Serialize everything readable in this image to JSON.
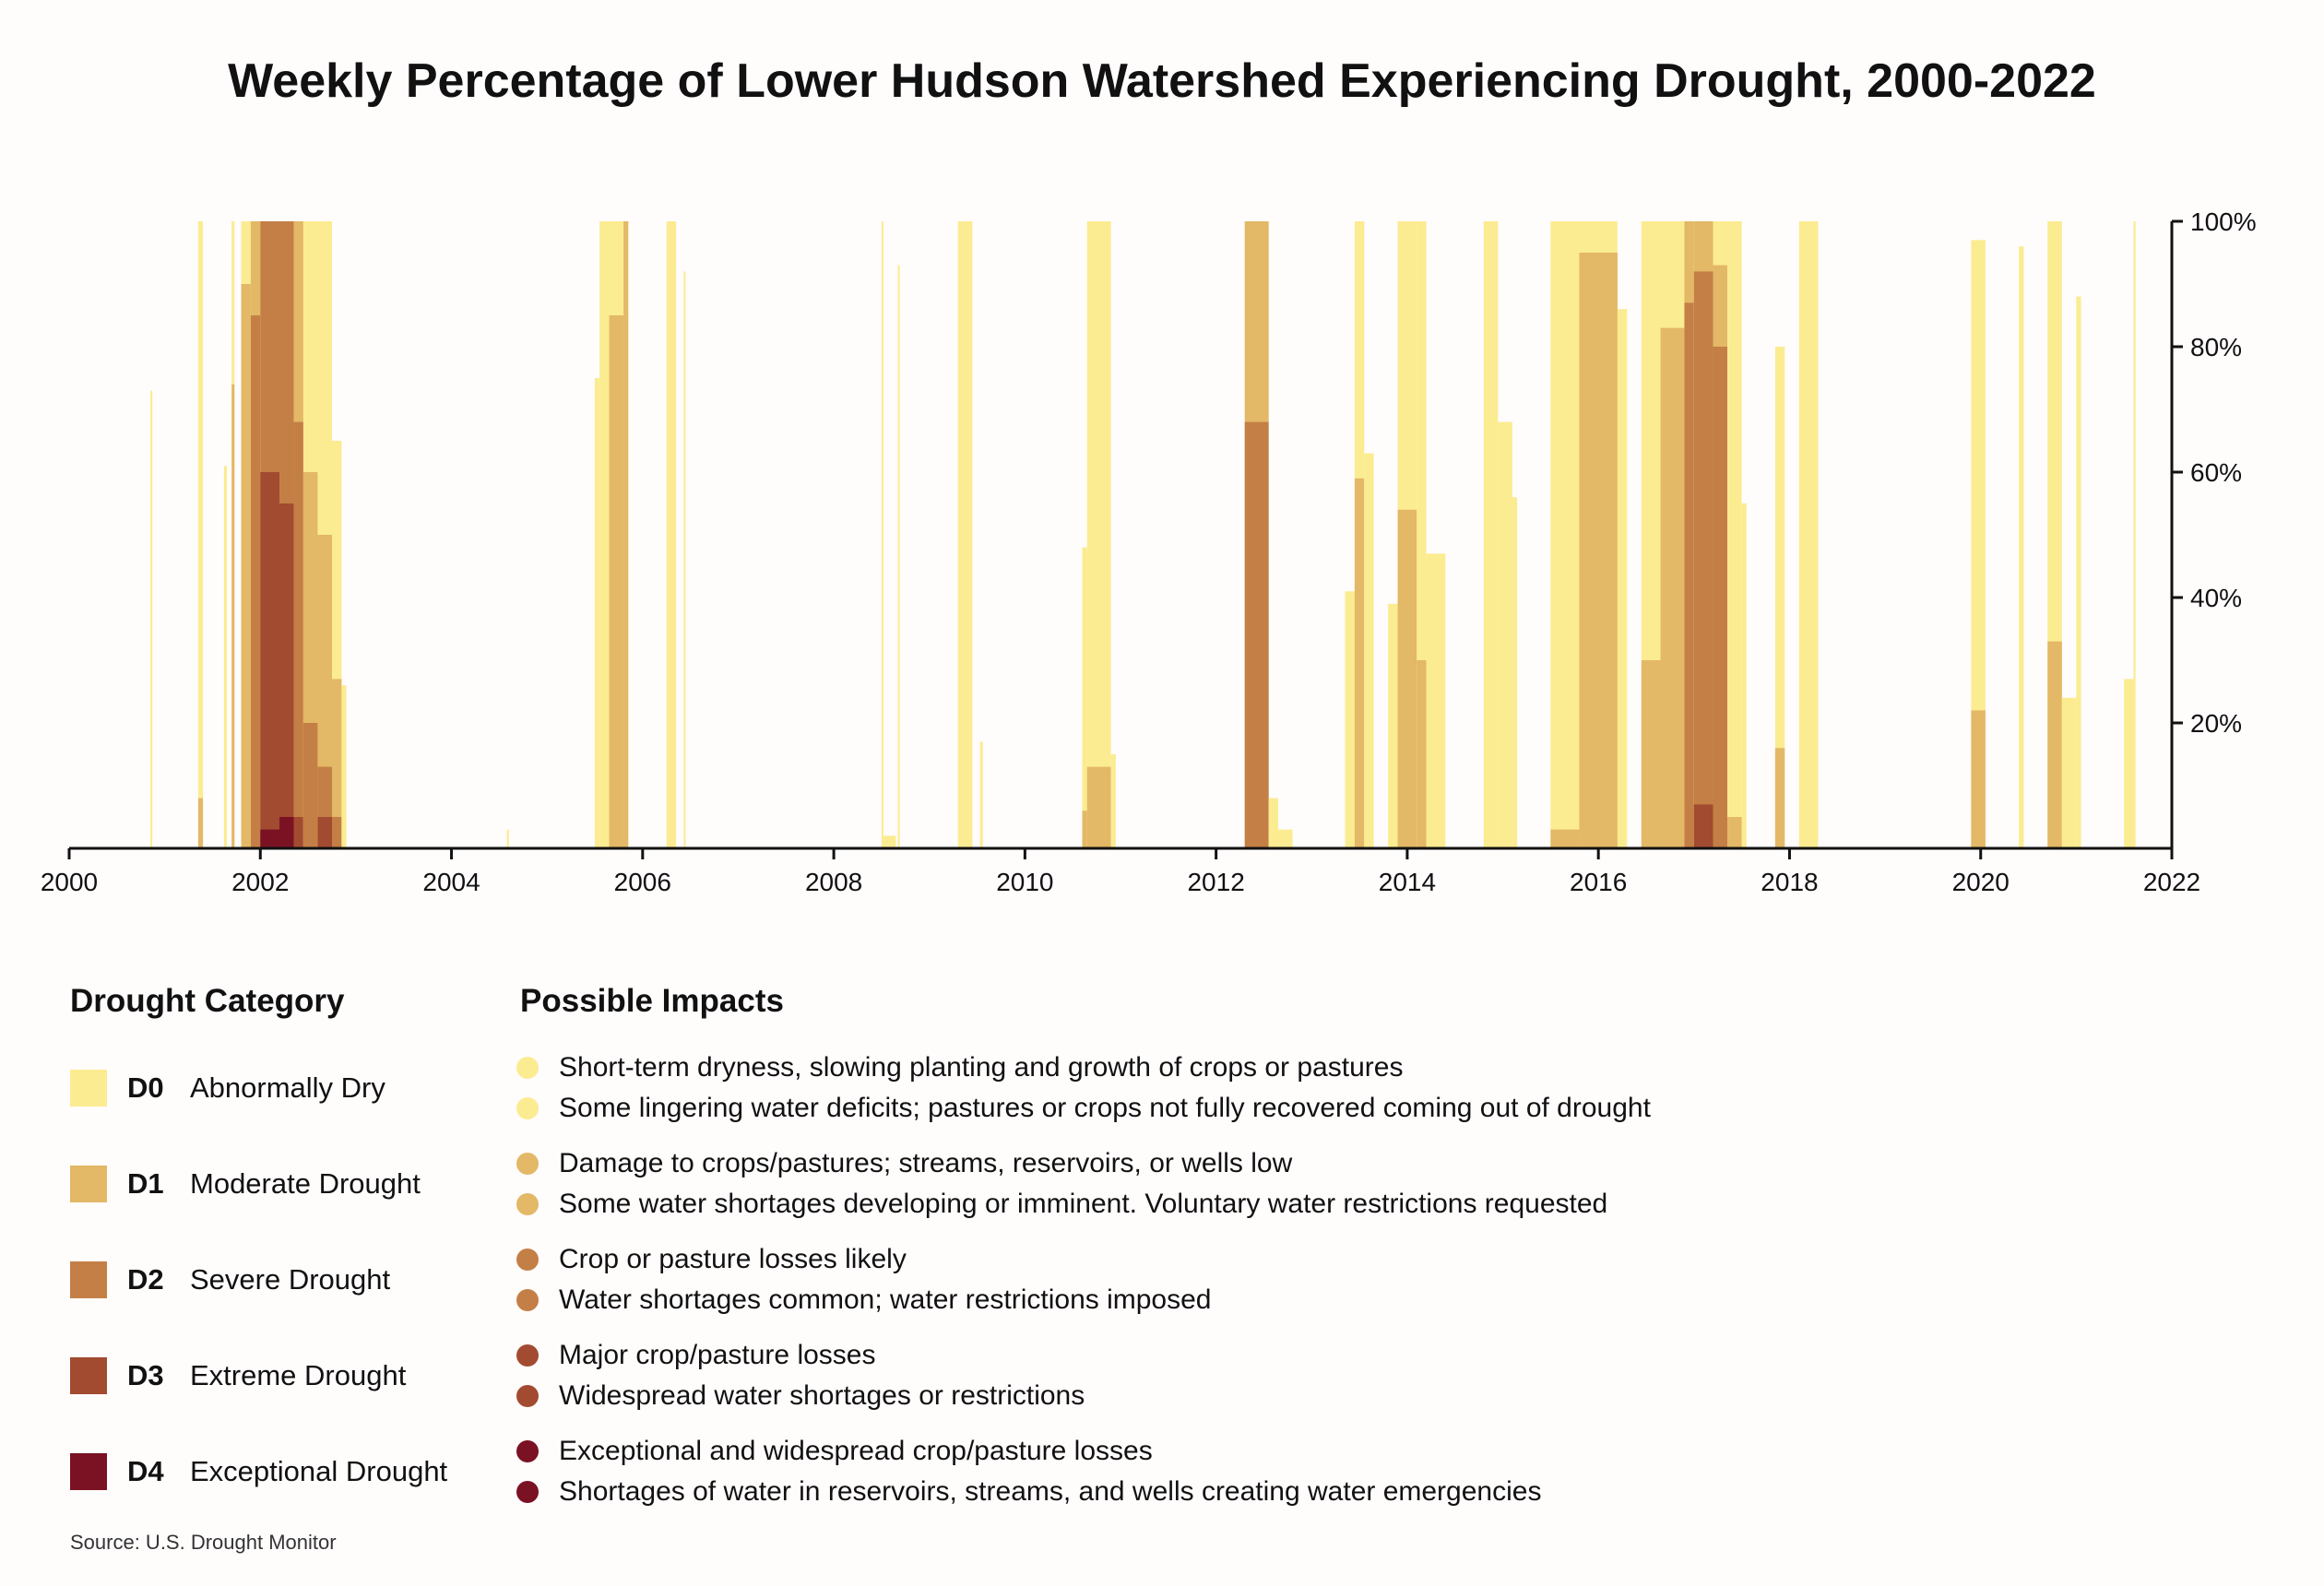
{
  "title": "Weekly Percentage of Lower Hudson Watershed Experiencing Drought, 2000-2022",
  "chart_data": {
    "type": "area",
    "title": "Weekly Percentage of Lower Hudson Watershed Experiencing Drought, 2000-2022",
    "xlim": [
      2000,
      2022
    ],
    "ylim": [
      0,
      100
    ],
    "x_ticks": [
      "2000",
      "2002",
      "2004",
      "2006",
      "2008",
      "2010",
      "2012",
      "2014",
      "2016",
      "2018",
      "2020",
      "2022"
    ],
    "y_ticks": [
      "20%",
      "40%",
      "60%",
      "80%",
      "100%"
    ],
    "y_axis_position": "right",
    "stacking": "cumulative percent of area at or above each category",
    "categories": [
      "D0",
      "D1",
      "D2",
      "D3",
      "D4"
    ],
    "colors": {
      "D0": "#FBEC91",
      "D1": "#E3B866",
      "D2": "#C47F46",
      "D3": "#A24B30",
      "D4": "#7A1224"
    },
    "segment_fields": [
      "from",
      "to",
      "D0",
      "D1",
      "D2",
      "D3",
      "D4"
    ],
    "segments": [
      [
        2000.85,
        2000.87,
        73,
        0,
        0,
        0,
        0
      ],
      [
        2001.35,
        2001.4,
        100,
        8,
        0,
        0,
        0
      ],
      [
        2001.62,
        2001.65,
        61,
        0,
        0,
        0,
        0
      ],
      [
        2001.7,
        2001.73,
        100,
        74,
        0,
        0,
        0
      ],
      [
        2001.8,
        2001.9,
        100,
        90,
        0,
        0,
        0
      ],
      [
        2001.9,
        2002.0,
        100,
        100,
        85,
        0,
        0
      ],
      [
        2002.0,
        2002.2,
        100,
        100,
        100,
        60,
        3
      ],
      [
        2002.2,
        2002.35,
        100,
        100,
        100,
        55,
        5
      ],
      [
        2002.35,
        2002.45,
        100,
        100,
        68,
        5,
        0
      ],
      [
        2002.45,
        2002.6,
        100,
        60,
        20,
        0,
        0
      ],
      [
        2002.6,
        2002.75,
        100,
        50,
        13,
        5,
        0
      ],
      [
        2002.75,
        2002.85,
        65,
        27,
        5,
        0,
        0
      ],
      [
        2002.85,
        2002.9,
        26,
        0,
        0,
        0,
        0
      ],
      [
        2004.58,
        2004.6,
        3,
        0,
        0,
        0,
        0
      ],
      [
        2005.5,
        2005.55,
        75,
        0,
        0,
        0,
        0
      ],
      [
        2005.55,
        2005.65,
        100,
        0,
        0,
        0,
        0
      ],
      [
        2005.65,
        2005.8,
        100,
        85,
        0,
        0,
        0
      ],
      [
        2005.8,
        2005.85,
        100,
        100,
        0,
        0,
        0
      ],
      [
        2006.25,
        2006.35,
        100,
        0,
        0,
        0,
        0
      ],
      [
        2006.43,
        2006.45,
        92,
        0,
        0,
        0,
        0
      ],
      [
        2008.5,
        2008.52,
        100,
        0,
        0,
        0,
        0
      ],
      [
        2008.52,
        2008.65,
        2,
        0,
        0,
        0,
        0
      ],
      [
        2008.67,
        2008.69,
        93,
        0,
        0,
        0,
        0
      ],
      [
        2009.3,
        2009.45,
        100,
        0,
        0,
        0,
        0
      ],
      [
        2009.53,
        2009.56,
        17,
        0,
        0,
        0,
        0
      ],
      [
        2010.6,
        2010.65,
        48,
        6,
        0,
        0,
        0
      ],
      [
        2010.65,
        2010.9,
        100,
        13,
        0,
        0,
        0
      ],
      [
        2010.9,
        2010.95,
        15,
        0,
        0,
        0,
        0
      ],
      [
        2012.3,
        2012.55,
        100,
        100,
        68,
        0,
        0
      ],
      [
        2012.55,
        2012.65,
        8,
        0,
        0,
        0,
        0
      ],
      [
        2012.65,
        2012.8,
        3,
        0,
        0,
        0,
        0
      ],
      [
        2013.35,
        2013.45,
        41,
        0,
        0,
        0,
        0
      ],
      [
        2013.45,
        2013.55,
        100,
        59,
        0,
        0,
        0
      ],
      [
        2013.55,
        2013.65,
        63,
        0,
        0,
        0,
        0
      ],
      [
        2013.8,
        2013.9,
        39,
        0,
        0,
        0,
        0
      ],
      [
        2013.9,
        2014.1,
        100,
        54,
        0,
        0,
        0
      ],
      [
        2014.1,
        2014.2,
        100,
        30,
        0,
        0,
        0
      ],
      [
        2014.2,
        2014.4,
        47,
        0,
        0,
        0,
        0
      ],
      [
        2014.8,
        2014.95,
        100,
        0,
        0,
        0,
        0
      ],
      [
        2014.95,
        2015.1,
        68,
        0,
        0,
        0,
        0
      ],
      [
        2015.1,
        2015.15,
        56,
        0,
        0,
        0,
        0
      ],
      [
        2015.5,
        2015.8,
        100,
        3,
        0,
        0,
        0
      ],
      [
        2015.8,
        2016.2,
        100,
        95,
        0,
        0,
        0
      ],
      [
        2016.2,
        2016.3,
        86,
        0,
        0,
        0,
        0
      ],
      [
        2016.45,
        2016.65,
        100,
        30,
        0,
        0,
        0
      ],
      [
        2016.65,
        2016.9,
        100,
        83,
        0,
        0,
        0
      ],
      [
        2016.9,
        2017.0,
        100,
        100,
        87,
        0,
        0
      ],
      [
        2017.0,
        2017.2,
        100,
        100,
        92,
        7,
        0
      ],
      [
        2017.2,
        2017.35,
        100,
        93,
        80,
        0,
        0
      ],
      [
        2017.35,
        2017.5,
        100,
        5,
        0,
        0,
        0
      ],
      [
        2017.5,
        2017.55,
        55,
        0,
        0,
        0,
        0
      ],
      [
        2017.85,
        2017.95,
        80,
        16,
        0,
        0,
        0
      ],
      [
        2018.1,
        2018.3,
        100,
        0,
        0,
        0,
        0
      ],
      [
        2019.9,
        2020.05,
        97,
        22,
        0,
        0,
        0
      ],
      [
        2020.4,
        2020.45,
        96,
        0,
        0,
        0,
        0
      ],
      [
        2020.7,
        2020.85,
        100,
        33,
        0,
        0,
        0
      ],
      [
        2020.85,
        2021.0,
        24,
        0,
        0,
        0,
        0
      ],
      [
        2021.0,
        2021.05,
        88,
        0,
        0,
        0,
        0
      ],
      [
        2021.5,
        2021.6,
        27,
        0,
        0,
        0,
        0
      ],
      [
        2021.6,
        2021.62,
        100,
        0,
        0,
        0,
        0
      ]
    ]
  },
  "legend": {
    "category_heading": "Drought Category",
    "impacts_heading": "Possible Impacts",
    "items": [
      {
        "code": "D0",
        "label": "Abnormally Dry",
        "color": "#FBEC91",
        "impacts": [
          "Short-term dryness, slowing planting and growth of crops or pastures",
          "Some lingering water deficits; pastures or crops not fully recovered coming out of drought"
        ]
      },
      {
        "code": "D1",
        "label": "Moderate Drought",
        "color": "#E3B866",
        "impacts": [
          "Damage to crops/pastures; streams, reservoirs, or wells low",
          "Some water shortages developing or imminent. Voluntary water restrictions requested"
        ]
      },
      {
        "code": "D2",
        "label": "Severe Drought",
        "color": "#C47F46",
        "impacts": [
          "Crop or pasture losses likely",
          "Water shortages common; water restrictions imposed"
        ]
      },
      {
        "code": "D3",
        "label": "Extreme Drought",
        "color": "#A24B30",
        "impacts": [
          "Major crop/pasture losses",
          "Widespread water shortages or restrictions"
        ]
      },
      {
        "code": "D4",
        "label": "Exceptional Drought",
        "color": "#7A1224",
        "impacts": [
          "Exceptional and widespread crop/pasture losses",
          "Shortages of water in reservoirs, streams, and wells creating water emergencies"
        ]
      }
    ]
  },
  "source": "Source: U.S. Drought Monitor"
}
